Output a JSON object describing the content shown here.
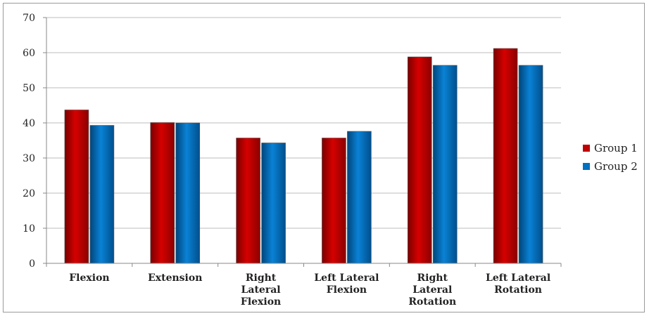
{
  "chart_data": {
    "type": "bar",
    "categories": [
      [
        "Flexion"
      ],
      [
        "Extension"
      ],
      [
        "Right",
        "Lateral",
        "Flexion"
      ],
      [
        "Left Lateral",
        "Flexion"
      ],
      [
        "Right",
        "Lateral",
        "Rotation"
      ],
      [
        "Left Lateral",
        "Rotation"
      ]
    ],
    "series": [
      {
        "name": "Group 1",
        "color": "#c00000",
        "values": [
          43.7,
          40.1,
          35.7,
          35.7,
          58.8,
          61.2
        ]
      },
      {
        "name": "Group 2",
        "color": "#0070c0",
        "values": [
          39.3,
          40.0,
          34.3,
          37.6,
          56.4,
          56.4
        ]
      }
    ],
    "ylim": [
      0,
      70
    ],
    "yticks": [
      0,
      10,
      20,
      30,
      40,
      50,
      60,
      70
    ],
    "grid": true,
    "legend_position": "right"
  }
}
